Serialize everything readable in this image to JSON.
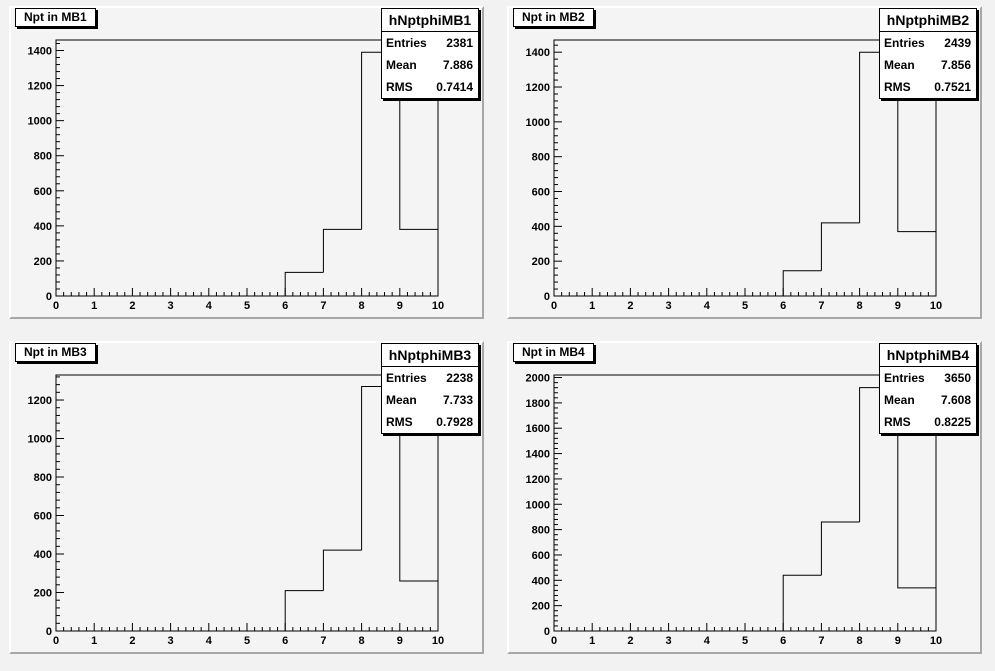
{
  "colors": {
    "pad_bg": "#f4f4f4",
    "frame": "#000000",
    "hist_line": "#000000"
  },
  "chart_data": [
    {
      "type": "bar",
      "title": "Npt in MB1",
      "stats": {
        "name": "hNptphiMB1",
        "entries_label": "Entries",
        "entries": "2381",
        "mean_label": "Mean",
        "mean": "7.886",
        "rms_label": "RMS",
        "rms": "0.7414"
      },
      "bin_edges": [
        0,
        1,
        2,
        3,
        4,
        5,
        6,
        7,
        8,
        9,
        10
      ],
      "values": [
        0,
        0,
        0,
        0,
        0,
        0,
        135,
        380,
        1390,
        380
      ],
      "xlim": [
        0,
        10
      ],
      "ylim": [
        0,
        1460
      ],
      "yticks": [
        0,
        200,
        400,
        600,
        800,
        1000,
        1200,
        1400
      ],
      "xticks": [
        0,
        1,
        2,
        3,
        4,
        5,
        6,
        7,
        8,
        9,
        10
      ]
    },
    {
      "type": "bar",
      "title": "Npt in MB2",
      "stats": {
        "name": "hNptphiMB2",
        "entries_label": "Entries",
        "entries": "2439",
        "mean_label": "Mean",
        "mean": "7.856",
        "rms_label": "RMS",
        "rms": "0.7521"
      },
      "bin_edges": [
        0,
        1,
        2,
        3,
        4,
        5,
        6,
        7,
        8,
        9,
        10
      ],
      "values": [
        0,
        0,
        0,
        0,
        0,
        0,
        145,
        420,
        1400,
        370
      ],
      "xlim": [
        0,
        10
      ],
      "ylim": [
        0,
        1470
      ],
      "yticks": [
        0,
        200,
        400,
        600,
        800,
        1000,
        1200,
        1400
      ],
      "xticks": [
        0,
        1,
        2,
        3,
        4,
        5,
        6,
        7,
        8,
        9,
        10
      ]
    },
    {
      "type": "bar",
      "title": "Npt in MB3",
      "stats": {
        "name": "hNptphiMB3",
        "entries_label": "Entries",
        "entries": "2238",
        "mean_label": "Mean",
        "mean": "7.733",
        "rms_label": "RMS",
        "rms": "0.7928"
      },
      "bin_edges": [
        0,
        1,
        2,
        3,
        4,
        5,
        6,
        7,
        8,
        9,
        10
      ],
      "values": [
        0,
        0,
        0,
        0,
        0,
        0,
        210,
        420,
        1270,
        260
      ],
      "xlim": [
        0,
        10
      ],
      "ylim": [
        0,
        1330
      ],
      "yticks": [
        0,
        200,
        400,
        600,
        800,
        1000,
        1200
      ],
      "xticks": [
        0,
        1,
        2,
        3,
        4,
        5,
        6,
        7,
        8,
        9,
        10
      ]
    },
    {
      "type": "bar",
      "title": "Npt in MB4",
      "stats": {
        "name": "hNptphiMB4",
        "entries_label": "Entries",
        "entries": "3650",
        "mean_label": "Mean",
        "mean": "7.608",
        "rms_label": "RMS",
        "rms": "0.8225"
      },
      "bin_edges": [
        0,
        1,
        2,
        3,
        4,
        5,
        6,
        7,
        8,
        9,
        10
      ],
      "values": [
        0,
        0,
        0,
        0,
        0,
        0,
        440,
        860,
        1920,
        340
      ],
      "xlim": [
        0,
        10
      ],
      "ylim": [
        0,
        2020
      ],
      "yticks": [
        0,
        200,
        400,
        600,
        800,
        1000,
        1200,
        1400,
        1600,
        1800,
        2000
      ],
      "xticks": [
        0,
        1,
        2,
        3,
        4,
        5,
        6,
        7,
        8,
        9,
        10
      ]
    }
  ]
}
